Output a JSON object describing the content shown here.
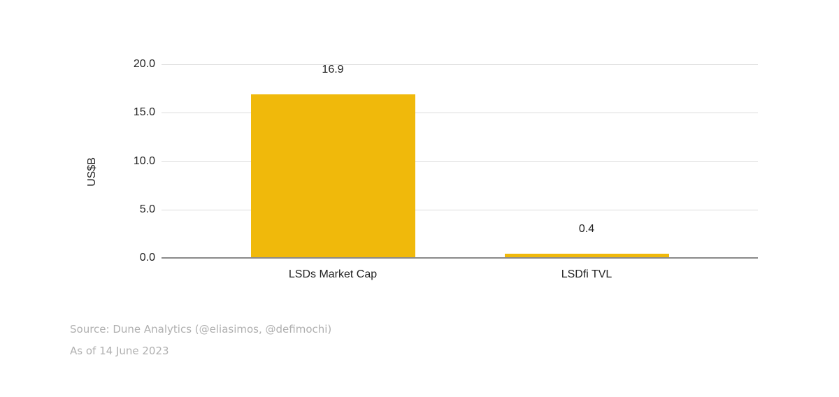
{
  "chart_data": {
    "type": "bar",
    "title": "",
    "xlabel": "",
    "ylabel": "US$B",
    "categories": [
      "LSDs Market Cap",
      "LSDfi TVL"
    ],
    "values": [
      16.9,
      0.4
    ],
    "data_labels": [
      "16.9",
      "0.4"
    ],
    "ylim": [
      0,
      20
    ],
    "yticks": [
      "0.0",
      "5.0",
      "10.0",
      "15.0",
      "20.0"
    ],
    "grid": true,
    "legend": null,
    "bar_color": "#f0b90b"
  },
  "footer": {
    "source": "Source: Dune Analytics (@eliasimos, @defimochi)",
    "date": "As of 14 June 2023"
  }
}
